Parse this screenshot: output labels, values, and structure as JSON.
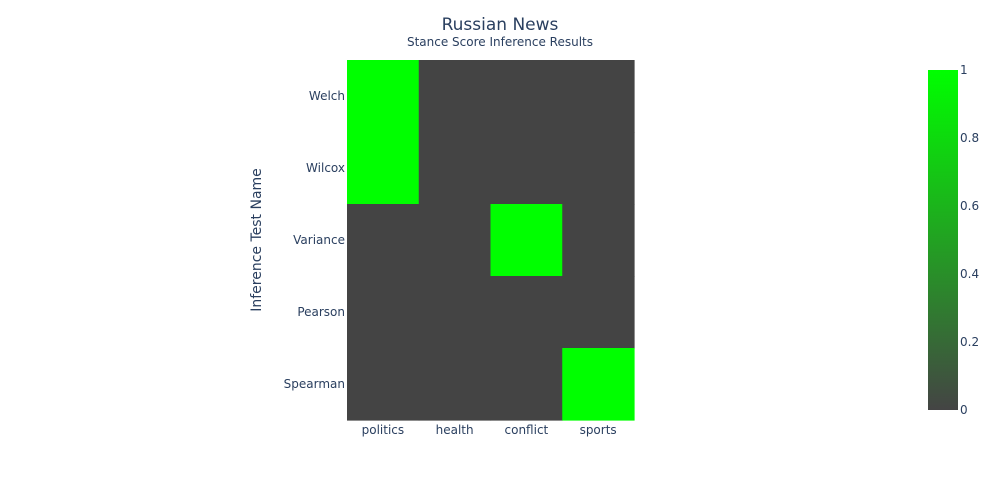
{
  "chart_data": {
    "type": "heatmap",
    "title": "Russian News",
    "subtitle": "Stance Score Inference Results",
    "xlabel": "",
    "ylabel": "Inference Test Name",
    "x_categories": [
      "politics",
      "health",
      "conflict",
      "sports"
    ],
    "y_categories": [
      "Welch",
      "Wilcox",
      "Variance",
      "Pearson",
      "Spearman"
    ],
    "z": [
      [
        1,
        0,
        0,
        0
      ],
      [
        1,
        0,
        0,
        0
      ],
      [
        0,
        0,
        1,
        0
      ],
      [
        0,
        0,
        0,
        0
      ],
      [
        0,
        0,
        0,
        1
      ]
    ],
    "colorscale": {
      "min_color": "#444444",
      "max_color": "#00ff00"
    },
    "colorbar": {
      "range": [
        0,
        1
      ],
      "tick_values": [
        0,
        0.2,
        0.4,
        0.6,
        0.8,
        1
      ],
      "tick_labels": [
        "0",
        "0.2",
        "0.4",
        "0.6",
        "0.8",
        "1"
      ]
    }
  }
}
